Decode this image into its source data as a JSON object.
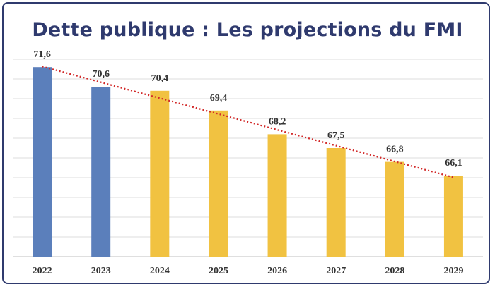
{
  "chart_data": {
    "type": "bar",
    "title": "Dette publique : Les projections du FMI",
    "categories": [
      "2022",
      "2023",
      "2024",
      "2025",
      "2026",
      "2027",
      "2028",
      "2029"
    ],
    "values": [
      71.6,
      70.6,
      70.4,
      69.4,
      68.2,
      67.5,
      66.8,
      66.1
    ],
    "value_labels": [
      "71,6",
      "70,6",
      "70,4",
      "69,4",
      "68,2",
      "67,5",
      "66,8",
      "66,1"
    ],
    "bar_groups": [
      "actual",
      "actual",
      "projection",
      "projection",
      "projection",
      "projection",
      "projection",
      "projection"
    ],
    "ylim": [
      62,
      72
    ],
    "xlabel": "",
    "ylabel": "",
    "grid": true,
    "trendline": "linear, dotted"
  },
  "colors": {
    "title": "#2f3a6e",
    "actual": "#5b7fbb",
    "projection": "#f1c241",
    "trendline": "#d22a2a",
    "grid": "#dcdcdc",
    "text": "#333333"
  }
}
